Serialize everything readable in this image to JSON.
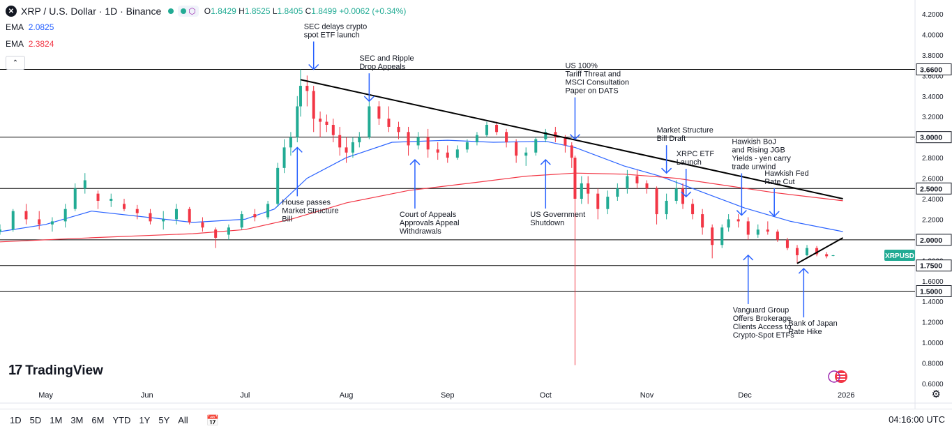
{
  "header": {
    "symbol_icon": "xrp-logo-icon",
    "title": "XRP / U.S. Dollar · 1D · Binance",
    "open_label": "O",
    "open": "1.8429",
    "high_label": "H",
    "high": "1.8525",
    "low_label": "L",
    "low": "1.8405",
    "close_label": "C",
    "close": "1.8499",
    "change": "+0.0062 (+0.34%)"
  },
  "indicators": [
    {
      "label": "EMA",
      "value": "2.0825",
      "color": "#2962ff"
    },
    {
      "label": "EMA",
      "value": "2.3824",
      "color": "#f23645"
    }
  ],
  "collapse_label": "⌃",
  "logo_text": "TradingView",
  "bottom": {
    "timeframes": [
      "1D",
      "5D",
      "1M",
      "3M",
      "6M",
      "YTD",
      "1Y",
      "5Y",
      "All"
    ],
    "clock": "04:16:00 UTC"
  },
  "chart_data": {
    "type": "candlestick",
    "title": "XRP / U.S. Dollar · 1D · Binance",
    "symbol_tag": "XRPUSD",
    "last_price": 1.8499,
    "x_ticks": [
      "May",
      "Jun",
      "Jul",
      "Aug",
      "Sep",
      "Oct",
      "Nov",
      "Dec",
      "2026"
    ],
    "y_ticks": [
      "0.6000",
      "0.8000",
      "1.0000",
      "1.2000",
      "1.4000",
      "1.6000",
      "1.8000",
      "2.0000",
      "2.2000",
      "2.4000",
      "2.6000",
      "2.8000",
      "3.0000",
      "3.2000",
      "3.4000",
      "3.6000",
      "3.8000",
      "4.0000",
      "4.2000"
    ],
    "horizontal_levels": [
      {
        "value": 3.66,
        "label": "3.6600"
      },
      {
        "value": 3.0,
        "label": "3.0000"
      },
      {
        "value": 2.5,
        "label": "2.5000"
      },
      {
        "value": 2.0,
        "label": "2.0000"
      },
      {
        "value": 1.75,
        "label": "1.7500"
      },
      {
        "value": 1.5,
        "label": "1.5000"
      }
    ],
    "trendlines": [
      {
        "from": [
          "2025-07-18",
          3.56
        ],
        "to": [
          "2025-12-31",
          2.4
        ]
      },
      {
        "from": [
          "2025-12-17",
          1.77
        ],
        "to": [
          "2025-12-31",
          2.02
        ]
      }
    ],
    "ema_series": [
      {
        "value_label": "2.0825",
        "color": "#2962ff",
        "points": [
          [
            "2025-04-17",
            2.08
          ],
          [
            "2025-05-01",
            2.15
          ],
          [
            "2025-05-15",
            2.28
          ],
          [
            "2025-06-01",
            2.22
          ],
          [
            "2025-06-15",
            2.17
          ],
          [
            "2025-07-01",
            2.2
          ],
          [
            "2025-07-10",
            2.3
          ],
          [
            "2025-07-20",
            2.6
          ],
          [
            "2025-08-01",
            2.8
          ],
          [
            "2025-08-15",
            2.95
          ],
          [
            "2025-09-01",
            2.97
          ],
          [
            "2025-09-15",
            2.95
          ],
          [
            "2025-10-01",
            2.96
          ],
          [
            "2025-10-10",
            2.9
          ],
          [
            "2025-10-25",
            2.72
          ],
          [
            "2025-11-05",
            2.62
          ],
          [
            "2025-11-20",
            2.44
          ],
          [
            "2025-12-01",
            2.31
          ],
          [
            "2025-12-15",
            2.18
          ],
          [
            "2025-12-31",
            2.08
          ]
        ]
      },
      {
        "value_label": "2.3824",
        "color": "#f23645",
        "points": [
          [
            "2025-04-17",
            1.98
          ],
          [
            "2025-05-15",
            2.02
          ],
          [
            "2025-06-15",
            2.06
          ],
          [
            "2025-07-01",
            2.1
          ],
          [
            "2025-07-15",
            2.2
          ],
          [
            "2025-08-01",
            2.36
          ],
          [
            "2025-08-20",
            2.48
          ],
          [
            "2025-09-10",
            2.56
          ],
          [
            "2025-09-25",
            2.62
          ],
          [
            "2025-10-10",
            2.65
          ],
          [
            "2025-10-25",
            2.64
          ],
          [
            "2025-11-10",
            2.6
          ],
          [
            "2025-11-25",
            2.53
          ],
          [
            "2025-12-10",
            2.46
          ],
          [
            "2025-12-31",
            2.38
          ]
        ]
      }
    ],
    "candles": [
      [
        "2025-04-17",
        2.08,
        2.15,
        2.05,
        2.1
      ],
      [
        "2025-04-21",
        2.1,
        2.3,
        2.08,
        2.28
      ],
      [
        "2025-04-25",
        2.28,
        2.35,
        2.15,
        2.2
      ],
      [
        "2025-04-29",
        2.2,
        2.28,
        2.1,
        2.15
      ],
      [
        "2025-05-03",
        2.15,
        2.22,
        2.08,
        2.18
      ],
      [
        "2025-05-07",
        2.18,
        2.35,
        2.12,
        2.3
      ],
      [
        "2025-05-10",
        2.3,
        2.55,
        2.28,
        2.5
      ],
      [
        "2025-05-13",
        2.5,
        2.65,
        2.45,
        2.58
      ],
      [
        "2025-05-17",
        2.45,
        2.48,
        2.3,
        2.38
      ],
      [
        "2025-05-21",
        2.38,
        2.45,
        2.32,
        2.4
      ],
      [
        "2025-05-25",
        2.35,
        2.4,
        2.28,
        2.3
      ],
      [
        "2025-05-29",
        2.3,
        2.34,
        2.2,
        2.26
      ],
      [
        "2025-06-02",
        2.26,
        2.3,
        2.15,
        2.18
      ],
      [
        "2025-06-06",
        2.18,
        2.28,
        2.1,
        2.2
      ],
      [
        "2025-06-10",
        2.2,
        2.35,
        2.15,
        2.3
      ],
      [
        "2025-06-14",
        2.3,
        2.32,
        2.15,
        2.17
      ],
      [
        "2025-06-18",
        2.17,
        2.22,
        2.08,
        2.12
      ],
      [
        "2025-06-22",
        2.1,
        2.12,
        1.92,
        2.02
      ],
      [
        "2025-06-26",
        2.05,
        2.15,
        2.0,
        2.12
      ],
      [
        "2025-06-30",
        2.12,
        2.28,
        2.1,
        2.25
      ],
      [
        "2025-07-04",
        2.25,
        2.3,
        2.18,
        2.22
      ],
      [
        "2025-07-08",
        2.22,
        2.38,
        2.2,
        2.35
      ],
      [
        "2025-07-11",
        2.35,
        2.75,
        2.32,
        2.7
      ],
      [
        "2025-07-13",
        2.7,
        2.98,
        2.65,
        2.9
      ],
      [
        "2025-07-15",
        2.9,
        3.05,
        2.82,
        3.0
      ],
      [
        "2025-07-17",
        3.0,
        3.4,
        2.95,
        3.3
      ],
      [
        "2025-07-18",
        3.3,
        3.66,
        3.2,
        3.5
      ],
      [
        "2025-07-20",
        3.5,
        3.6,
        3.3,
        3.45
      ],
      [
        "2025-07-22",
        3.45,
        3.5,
        3.05,
        3.18
      ],
      [
        "2025-07-24",
        3.18,
        3.25,
        3.0,
        3.15
      ],
      [
        "2025-07-26",
        3.15,
        3.22,
        3.05,
        3.12
      ],
      [
        "2025-07-28",
        3.12,
        3.18,
        2.95,
        3.02
      ],
      [
        "2025-07-30",
        3.02,
        3.1,
        2.82,
        2.9
      ],
      [
        "2025-08-01",
        2.9,
        3.0,
        2.75,
        2.85
      ],
      [
        "2025-08-03",
        2.85,
        3.0,
        2.8,
        2.95
      ],
      [
        "2025-08-05",
        2.95,
        3.05,
        2.9,
        3.0
      ],
      [
        "2025-08-08",
        3.0,
        3.38,
        2.98,
        3.3
      ],
      [
        "2025-08-11",
        3.3,
        3.35,
        3.12,
        3.18
      ],
      [
        "2025-08-14",
        3.18,
        3.3,
        3.05,
        3.1
      ],
      [
        "2025-08-17",
        3.1,
        3.15,
        2.98,
        3.05
      ],
      [
        "2025-08-20",
        3.05,
        3.1,
        2.82,
        2.92
      ],
      [
        "2025-08-23",
        2.92,
        3.05,
        2.88,
        3.0
      ],
      [
        "2025-08-26",
        3.0,
        3.08,
        2.8,
        2.88
      ],
      [
        "2025-08-29",
        2.88,
        2.95,
        2.78,
        2.85
      ],
      [
        "2025-09-01",
        2.85,
        2.92,
        2.75,
        2.8
      ],
      [
        "2025-09-04",
        2.8,
        2.92,
        2.78,
        2.88
      ],
      [
        "2025-09-07",
        2.88,
        2.98,
        2.85,
        2.95
      ],
      [
        "2025-09-10",
        2.95,
        3.05,
        2.92,
        3.02
      ],
      [
        "2025-09-13",
        3.02,
        3.15,
        3.0,
        3.12
      ],
      [
        "2025-09-16",
        3.12,
        3.15,
        3.02,
        3.05
      ],
      [
        "2025-09-19",
        3.05,
        3.08,
        2.9,
        2.95
      ],
      [
        "2025-09-22",
        2.95,
        2.98,
        2.75,
        2.82
      ],
      [
        "2025-09-25",
        2.82,
        2.9,
        2.72,
        2.85
      ],
      [
        "2025-09-28",
        2.85,
        3.0,
        2.82,
        2.98
      ],
      [
        "2025-10-01",
        2.98,
        3.08,
        2.95,
        3.05
      ],
      [
        "2025-10-04",
        3.05,
        3.1,
        2.95,
        3.0
      ],
      [
        "2025-10-07",
        3.0,
        3.02,
        2.85,
        2.92
      ],
      [
        "2025-10-09",
        2.92,
        2.95,
        2.7,
        2.8
      ],
      [
        "2025-10-10",
        2.8,
        2.82,
        0.78,
        2.4
      ],
      [
        "2025-10-12",
        2.4,
        2.62,
        2.35,
        2.55
      ],
      [
        "2025-10-14",
        2.55,
        2.62,
        2.35,
        2.45
      ],
      [
        "2025-10-17",
        2.45,
        2.5,
        2.2,
        2.3
      ],
      [
        "2025-10-20",
        2.3,
        2.48,
        2.25,
        2.42
      ],
      [
        "2025-10-23",
        2.42,
        2.55,
        2.38,
        2.5
      ],
      [
        "2025-10-26",
        2.5,
        2.68,
        2.45,
        2.62
      ],
      [
        "2025-10-29",
        2.62,
        2.68,
        2.5,
        2.55
      ],
      [
        "2025-11-01",
        2.55,
        2.58,
        2.45,
        2.5
      ],
      [
        "2025-11-04",
        2.5,
        2.52,
        2.15,
        2.25
      ],
      [
        "2025-11-07",
        2.25,
        2.45,
        2.2,
        2.38
      ],
      [
        "2025-11-10",
        2.38,
        2.58,
        2.35,
        2.5
      ],
      [
        "2025-11-12",
        2.5,
        2.55,
        2.3,
        2.35
      ],
      [
        "2025-11-15",
        2.35,
        2.4,
        2.2,
        2.25
      ],
      [
        "2025-11-18",
        2.25,
        2.3,
        2.05,
        2.12
      ],
      [
        "2025-11-21",
        2.12,
        2.15,
        1.82,
        1.95
      ],
      [
        "2025-11-24",
        1.95,
        2.15,
        1.92,
        2.12
      ],
      [
        "2025-11-26",
        2.12,
        2.25,
        2.08,
        2.2
      ],
      [
        "2025-11-29",
        2.2,
        2.25,
        2.12,
        2.18
      ],
      [
        "2025-12-02",
        2.18,
        2.22,
        2.0,
        2.05
      ],
      [
        "2025-12-05",
        2.05,
        2.15,
        2.02,
        2.1
      ],
      [
        "2025-12-08",
        2.1,
        2.18,
        2.05,
        2.08
      ],
      [
        "2025-12-11",
        2.08,
        2.1,
        1.98,
        2.0
      ],
      [
        "2025-12-14",
        2.0,
        2.02,
        1.9,
        1.92
      ],
      [
        "2025-12-17",
        1.92,
        1.95,
        1.77,
        1.85
      ],
      [
        "2025-12-20",
        1.85,
        1.95,
        1.84,
        1.92
      ],
      [
        "2025-12-23",
        1.92,
        1.94,
        1.84,
        1.86
      ],
      [
        "2025-12-26",
        1.86,
        1.88,
        1.82,
        1.84
      ],
      [
        "2025-12-28",
        1.8429,
        1.8525,
        1.8405,
        1.8499
      ]
    ],
    "annotations": [
      {
        "text": [
          "SEC delays crypto",
          "spot ETF launch"
        ],
        "date": "2025-07-22",
        "value": 3.66,
        "arrow": "down"
      },
      {
        "text": [
          "SEC and Ripple",
          "Drop Appeals"
        ],
        "date": "2025-08-08",
        "value": 3.35,
        "arrow": "down"
      },
      {
        "text": [
          "US 100%",
          "Tariff Threat and",
          "MSCI Consultation",
          "Paper on DATS"
        ],
        "date": "2025-10-10",
        "value": 2.98,
        "arrow": "down"
      },
      {
        "text": [
          "Market Structure",
          "Bill Draft"
        ],
        "date": "2025-11-07",
        "value": 2.65,
        "arrow": "down"
      },
      {
        "text": [
          "XRPC ETF",
          "Launch"
        ],
        "date": "2025-11-13",
        "value": 2.42,
        "arrow": "down"
      },
      {
        "text": [
          "Hawkish BoJ",
          "and Rising JGB",
          "Yields - yen carry",
          "trade unwind"
        ],
        "date": "2025-11-30",
        "value": 2.24,
        "arrow": "down"
      },
      {
        "text": [
          "Hawkish Fed",
          "Rate Cut"
        ],
        "date": "2025-12-10",
        "value": 2.23,
        "arrow": "down"
      },
      {
        "text": [
          "House passes",
          "Market Structure",
          "Bill"
        ],
        "date": "2025-07-17",
        "value": 2.9,
        "arrow": "up"
      },
      {
        "text": [
          "Court of Appeals",
          "Approvals Appeal",
          "Withdrawals"
        ],
        "date": "2025-08-22",
        "value": 2.78,
        "arrow": "up"
      },
      {
        "text": [
          "US Government",
          "Shutdown"
        ],
        "date": "2025-10-01",
        "value": 2.78,
        "arrow": "up"
      },
      {
        "text": [
          "Vanguard Group",
          "Offers Brokerage",
          "Clients Access to",
          "Crypto-Spot ETFs"
        ],
        "date": "2025-12-02",
        "value": 1.85,
        "arrow": "up"
      },
      {
        "text": [
          "Bank of Japan",
          "Rate Hike"
        ],
        "date": "2025-12-19",
        "value": 1.72,
        "arrow": "up"
      }
    ],
    "colors": {
      "up": "#22ab94",
      "down": "#f23645",
      "annotation": "#2962ff",
      "level": "#000000",
      "trendline": "#000000",
      "last_price_tag": "#22ab94"
    },
    "grid": false
  }
}
